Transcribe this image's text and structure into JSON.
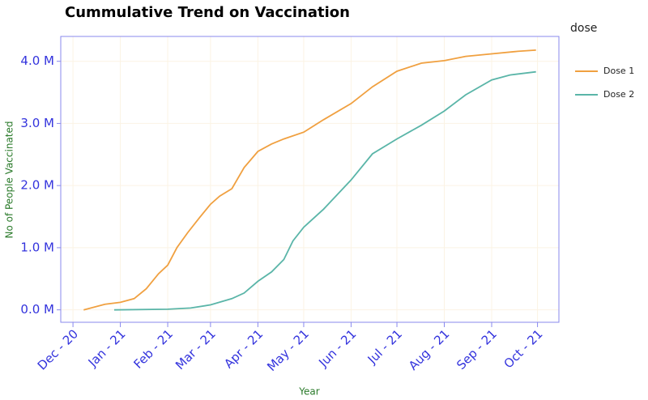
{
  "chart_data": {
    "type": "line",
    "title": "Cummulative Trend on Vaccination",
    "x_label": "Year",
    "y_label": "No of People Vaccinated",
    "legend_title": "dose",
    "legend_position": "right",
    "grid": true,
    "xlim": [
      "2020-11-23",
      "2021-10-15"
    ],
    "xticks": [
      {
        "value": "2020-12-01",
        "label": "Dec - 20"
      },
      {
        "value": "2021-01-01",
        "label": "Jan - 21"
      },
      {
        "value": "2021-02-01",
        "label": "Feb - 21"
      },
      {
        "value": "2021-03-01",
        "label": "Mar - 21"
      },
      {
        "value": "2021-04-01",
        "label": "Apr - 21"
      },
      {
        "value": "2021-05-01",
        "label": "May - 21"
      },
      {
        "value": "2021-06-01",
        "label": "Jun - 21"
      },
      {
        "value": "2021-07-01",
        "label": "Jul - 21"
      },
      {
        "value": "2021-08-01",
        "label": "Aug - 21"
      },
      {
        "value": "2021-09-01",
        "label": "Sep - 21"
      },
      {
        "value": "2021-10-01",
        "label": "Oct - 21"
      }
    ],
    "ylim": [
      -0.2,
      4.4
    ],
    "yticks": [
      {
        "value": 0,
        "label": "0.0 M"
      },
      {
        "value": 1,
        "label": "1.0 M"
      },
      {
        "value": 2,
        "label": "2.0 M"
      },
      {
        "value": 3,
        "label": "3.0 M"
      },
      {
        "value": 4,
        "label": "4.0 M"
      }
    ],
    "series": [
      {
        "name": "Dose 1",
        "color": "#f0a040",
        "x": [
          "2020-12-08",
          "2020-12-22",
          "2021-01-01",
          "2021-01-10",
          "2021-01-18",
          "2021-01-26",
          "2021-02-01",
          "2021-02-07",
          "2021-02-14",
          "2021-02-22",
          "2021-03-01",
          "2021-03-07",
          "2021-03-15",
          "2021-03-23",
          "2021-04-01",
          "2021-04-10",
          "2021-04-18",
          "2021-05-01",
          "2021-05-14",
          "2021-06-01",
          "2021-06-15",
          "2021-07-01",
          "2021-07-17",
          "2021-08-01",
          "2021-08-15",
          "2021-09-01",
          "2021-09-18",
          "2021-09-30"
        ],
        "values": [
          0.0,
          0.09,
          0.12,
          0.18,
          0.34,
          0.58,
          0.72,
          1.0,
          1.24,
          1.49,
          1.7,
          1.83,
          1.95,
          2.29,
          2.55,
          2.67,
          2.75,
          2.86,
          3.06,
          3.32,
          3.59,
          3.84,
          3.97,
          4.01,
          4.08,
          4.12,
          4.16,
          4.18
        ]
      },
      {
        "name": "Dose 2",
        "color": "#5ab5a8",
        "x": [
          "2020-12-28",
          "2021-02-01",
          "2021-02-16",
          "2021-03-01",
          "2021-03-15",
          "2021-03-23",
          "2021-04-01",
          "2021-04-10",
          "2021-04-18",
          "2021-04-24",
          "2021-05-01",
          "2021-05-14",
          "2021-06-01",
          "2021-06-15",
          "2021-07-01",
          "2021-07-17",
          "2021-08-01",
          "2021-08-15",
          "2021-09-01",
          "2021-09-13",
          "2021-09-30"
        ],
        "values": [
          0.0,
          0.01,
          0.03,
          0.08,
          0.18,
          0.27,
          0.46,
          0.61,
          0.81,
          1.11,
          1.33,
          1.62,
          2.09,
          2.51,
          2.75,
          2.97,
          3.2,
          3.46,
          3.7,
          3.78,
          3.83
        ]
      }
    ]
  }
}
